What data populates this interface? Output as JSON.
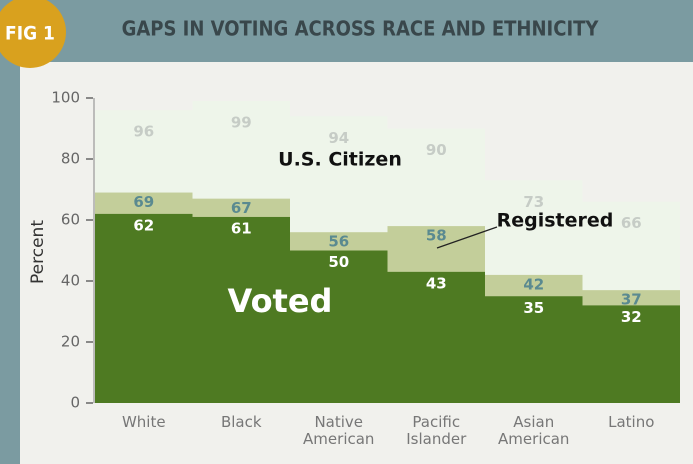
{
  "figure_label": "FIG 1",
  "chart_data": {
    "type": "overlap_bar",
    "title": "GAPS IN VOTING ACROSS RACE AND ETHNICITY",
    "y_label": "Percent",
    "categories": [
      "White",
      "Black",
      "Native American",
      "Pacific Islander",
      "Asian American",
      "Latino"
    ],
    "series": [
      {
        "name": "U.S. Citizen",
        "color": "#eef5ea",
        "label_color": "#c6ccc6",
        "values": [
          96,
          99,
          94,
          90,
          73,
          66
        ]
      },
      {
        "name": "Registered",
        "color": "#c3ce9a",
        "label_color": "#5a8a90",
        "values": [
          69,
          67,
          56,
          58,
          42,
          37
        ]
      },
      {
        "name": "Voted",
        "color": "#4e7a22",
        "label_color": "#ffffff",
        "values": [
          62,
          61,
          50,
          43,
          35,
          32
        ]
      }
    ],
    "ylim": [
      0,
      100
    ],
    "yticks": [
      0,
      20,
      40,
      60,
      80,
      100
    ]
  }
}
